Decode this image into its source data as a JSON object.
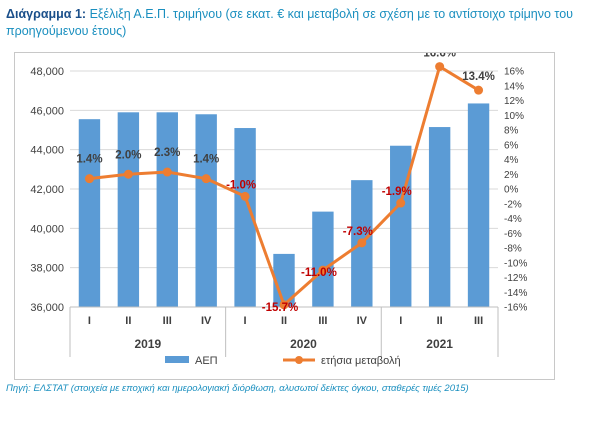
{
  "title": {
    "prefix": "Διάγραμμα 1:",
    "text": "Εξέλιξη Α.Ε.Π. τριμήνου (σε εκατ. € και μεταβολή σε σχέση με το αντίστοιχο τρίμηνο του προηγούμενου έτους)"
  },
  "source": "Πηγή: ΕΛΣΤΑΤ (στοιχεία με εποχική και ημερολογιακή διόρθωση, αλυσωτοί δείκτες όγκου, σταθερές τιμές 2015)",
  "colors": {
    "bars": "#5b9bd5",
    "line": "#ed7d31",
    "label_positive": "#404040",
    "label_negative": "#c00000"
  },
  "chart_data": {
    "type": "bar",
    "categories": [
      "I",
      "II",
      "III",
      "IV",
      "I",
      "II",
      "III",
      "IV",
      "I",
      "II",
      "III"
    ],
    "groups": [
      {
        "label": "2019",
        "count": 4
      },
      {
        "label": "2020",
        "count": 4
      },
      {
        "label": "2021",
        "count": 3
      }
    ],
    "series": [
      {
        "name": "ΑΕΠ",
        "type": "bar",
        "axis": "left",
        "values": [
          45550,
          45900,
          45900,
          45800,
          45100,
          38700,
          40850,
          42450,
          44200,
          45150,
          46350
        ]
      },
      {
        "name": "ετήσια μεταβολή",
        "type": "line",
        "axis": "right",
        "values": [
          1.4,
          2.0,
          2.3,
          1.4,
          -1.0,
          -15.7,
          -11.0,
          -7.3,
          -1.9,
          16.6,
          13.4
        ],
        "labels": [
          "1.4%",
          "2.0%",
          "2.3%",
          "1.4%",
          "-1.0%",
          "-15.7%",
          "-11.0%",
          "-7.3%",
          "-1.9%",
          "16.6%",
          "13.4%"
        ]
      }
    ],
    "y_left": {
      "min": 36000,
      "max": 48000,
      "ticks": [
        "36,000",
        "38,000",
        "40,000",
        "42,000",
        "44,000",
        "46,000",
        "48,000"
      ]
    },
    "y_right": {
      "min": -16,
      "max": 16,
      "ticks": [
        "-16%",
        "-14%",
        "-12%",
        "-10%",
        "-8%",
        "-6%",
        "-4%",
        "-2%",
        "0%",
        "2%",
        "4%",
        "6%",
        "8%",
        "10%",
        "12%",
        "14%",
        "16%"
      ]
    },
    "grid": true,
    "legend_position": "bottom"
  }
}
